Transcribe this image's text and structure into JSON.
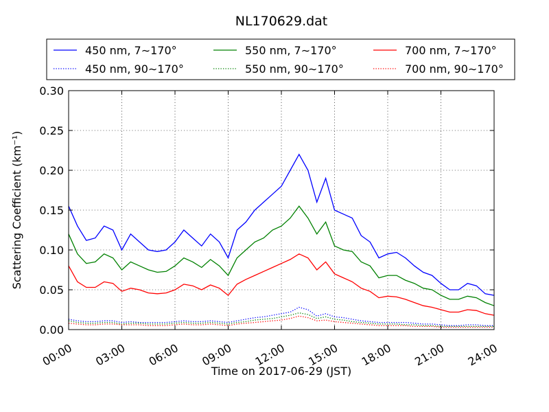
{
  "chart_data": {
    "type": "line",
    "title": "NL170629.dat",
    "xlabel": "Time on 2017-06-29 (JST)",
    "ylabel": "Scattering Coefficient (km⁻¹)",
    "xlim": [
      0,
      24
    ],
    "ylim": [
      0.0,
      0.3
    ],
    "x_ticks": [
      "00:00",
      "03:00",
      "06:00",
      "09:00",
      "12:00",
      "15:00",
      "18:00",
      "21:00",
      "24:00"
    ],
    "y_ticks": [
      "0.00",
      "0.05",
      "0.10",
      "0.15",
      "0.20",
      "0.25",
      "0.30"
    ],
    "grid": true,
    "legend_position": "top",
    "x": [
      0,
      0.5,
      1,
      1.5,
      2,
      2.5,
      3,
      3.5,
      4,
      4.5,
      5,
      5.5,
      6,
      6.5,
      7,
      7.5,
      8,
      8.5,
      9,
      9.5,
      10,
      10.5,
      11,
      11.5,
      12,
      12.5,
      13,
      13.5,
      14,
      14.5,
      15,
      15.5,
      16,
      16.5,
      17,
      17.5,
      18,
      18.5,
      19,
      19.5,
      20,
      20.5,
      21,
      21.5,
      22,
      22.5,
      23,
      23.5,
      24
    ],
    "series": [
      {
        "name": "450 nm, 7∼170°",
        "color": "#0000ff",
        "style": "solid",
        "values": [
          0.155,
          0.13,
          0.112,
          0.115,
          0.13,
          0.125,
          0.1,
          0.12,
          0.11,
          0.1,
          0.098,
          0.1,
          0.11,
          0.125,
          0.115,
          0.105,
          0.12,
          0.11,
          0.09,
          0.125,
          0.135,
          0.15,
          0.16,
          0.17,
          0.18,
          0.2,
          0.22,
          0.2,
          0.16,
          0.19,
          0.15,
          0.145,
          0.14,
          0.118,
          0.11,
          0.09,
          0.095,
          0.097,
          0.09,
          0.08,
          0.072,
          0.068,
          0.058,
          0.05,
          0.05,
          0.058,
          0.055,
          0.045,
          0.043
        ]
      },
      {
        "name": "550 nm, 7∼170°",
        "color": "#008000",
        "style": "solid",
        "values": [
          0.12,
          0.095,
          0.083,
          0.085,
          0.095,
          0.09,
          0.075,
          0.085,
          0.08,
          0.075,
          0.072,
          0.073,
          0.08,
          0.09,
          0.085,
          0.078,
          0.088,
          0.08,
          0.068,
          0.09,
          0.1,
          0.11,
          0.115,
          0.125,
          0.13,
          0.14,
          0.155,
          0.14,
          0.12,
          0.135,
          0.105,
          0.1,
          0.098,
          0.085,
          0.08,
          0.065,
          0.068,
          0.068,
          0.062,
          0.058,
          0.052,
          0.05,
          0.043,
          0.038,
          0.038,
          0.042,
          0.04,
          0.034,
          0.03
        ]
      },
      {
        "name": "700 nm, 7∼170°",
        "color": "#ff0000",
        "style": "solid",
        "values": [
          0.08,
          0.06,
          0.053,
          0.053,
          0.06,
          0.058,
          0.048,
          0.052,
          0.05,
          0.046,
          0.045,
          0.046,
          0.05,
          0.057,
          0.055,
          0.05,
          0.056,
          0.052,
          0.043,
          0.057,
          0.063,
          0.068,
          0.073,
          0.078,
          0.083,
          0.088,
          0.095,
          0.09,
          0.075,
          0.085,
          0.07,
          0.065,
          0.06,
          0.052,
          0.048,
          0.04,
          0.042,
          0.041,
          0.038,
          0.034,
          0.03,
          0.028,
          0.025,
          0.022,
          0.022,
          0.025,
          0.024,
          0.02,
          0.018
        ]
      },
      {
        "name": "450 nm, 90∼170°",
        "color": "#0000ff",
        "style": "dotted",
        "values": [
          0.013,
          0.011,
          0.01,
          0.01,
          0.011,
          0.011,
          0.009,
          0.01,
          0.009,
          0.009,
          0.009,
          0.009,
          0.01,
          0.011,
          0.01,
          0.01,
          0.011,
          0.01,
          0.009,
          0.011,
          0.013,
          0.015,
          0.016,
          0.018,
          0.02,
          0.022,
          0.028,
          0.025,
          0.017,
          0.02,
          0.016,
          0.015,
          0.013,
          0.011,
          0.01,
          0.009,
          0.009,
          0.009,
          0.009,
          0.008,
          0.007,
          0.007,
          0.006,
          0.005,
          0.005,
          0.006,
          0.006,
          0.005,
          0.005
        ]
      },
      {
        "name": "550 nm, 90∼170°",
        "color": "#008000",
        "style": "dotted",
        "values": [
          0.011,
          0.009,
          0.008,
          0.008,
          0.009,
          0.009,
          0.007,
          0.008,
          0.008,
          0.007,
          0.007,
          0.007,
          0.008,
          0.009,
          0.008,
          0.008,
          0.009,
          0.008,
          0.007,
          0.009,
          0.01,
          0.012,
          0.013,
          0.014,
          0.016,
          0.018,
          0.021,
          0.019,
          0.014,
          0.016,
          0.013,
          0.012,
          0.01,
          0.009,
          0.008,
          0.007,
          0.007,
          0.007,
          0.006,
          0.006,
          0.005,
          0.005,
          0.004,
          0.004,
          0.004,
          0.004,
          0.004,
          0.004,
          0.004
        ]
      },
      {
        "name": "700 nm, 90∼170°",
        "color": "#ff0000",
        "style": "dotted",
        "values": [
          0.008,
          0.007,
          0.006,
          0.006,
          0.007,
          0.007,
          0.006,
          0.006,
          0.006,
          0.005,
          0.005,
          0.005,
          0.006,
          0.007,
          0.006,
          0.006,
          0.007,
          0.006,
          0.005,
          0.007,
          0.008,
          0.009,
          0.01,
          0.011,
          0.012,
          0.014,
          0.017,
          0.015,
          0.011,
          0.012,
          0.01,
          0.009,
          0.008,
          0.007,
          0.006,
          0.005,
          0.005,
          0.005,
          0.005,
          0.004,
          0.004,
          0.004,
          0.003,
          0.003,
          0.003,
          0.003,
          0.003,
          0.003,
          0.003
        ]
      }
    ]
  }
}
